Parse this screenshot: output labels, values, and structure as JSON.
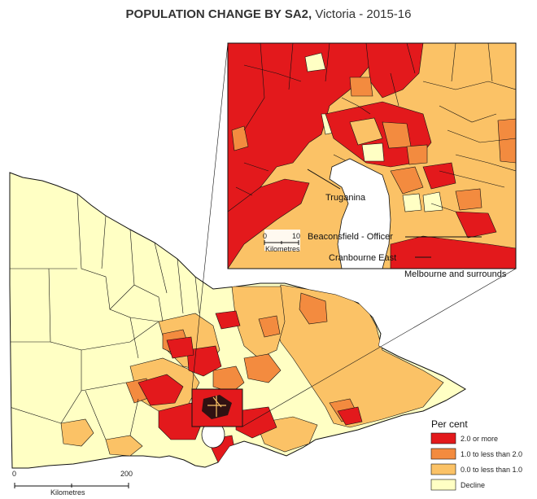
{
  "title": {
    "bold": "POPULATION CHANGE BY SA2,",
    "rest": " Victoria - 2015-16"
  },
  "inset": {
    "caption": "Melbourne and surrounds",
    "labels": {
      "truganina": "Truganina",
      "beaconsfield": "Beaconsfield - Officer",
      "cranbourne": "Cranbourne East"
    },
    "scale": {
      "start": "0",
      "end": "10",
      "unit": "Kilometres"
    }
  },
  "main_scale": {
    "start": "0",
    "end": "200",
    "unit": "Kilometres"
  },
  "legend": {
    "title": "Per cent",
    "items": [
      {
        "label": "2.0 or more",
        "color": "#e3191c"
      },
      {
        "label": "1.0 to less than 2.0",
        "color": "#f38b3f"
      },
      {
        "label": "0.0 to less than 1.0",
        "color": "#fbc266"
      },
      {
        "label": "Decline",
        "color": "#ffffc4"
      }
    ]
  },
  "colors": {
    "decline": "#ffffc4",
    "low": "#fbc266",
    "mid": "#f38b3f",
    "high": "#e3191c",
    "border": "#111111"
  }
}
